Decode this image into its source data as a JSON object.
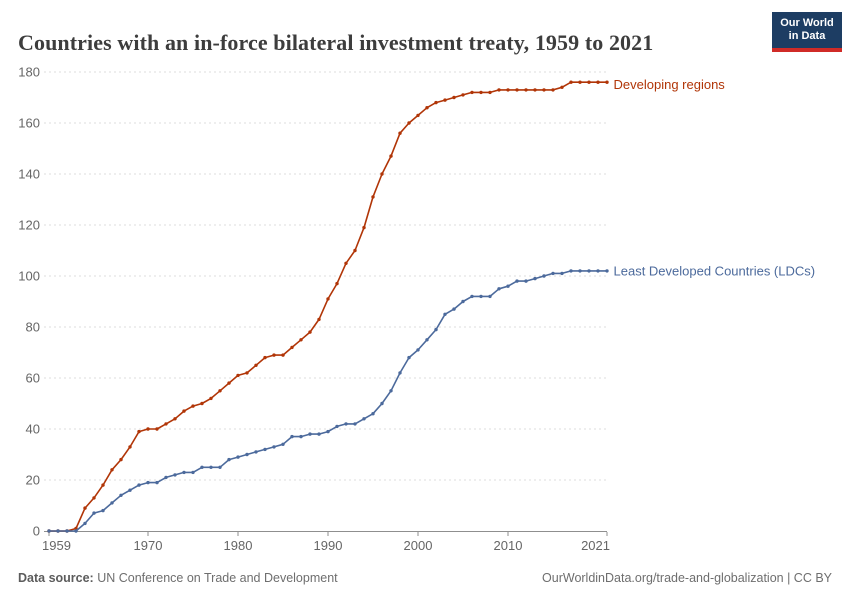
{
  "header": {
    "title": "Countries with an in-force bilateral investment treaty, 1959 to 2021",
    "logo": {
      "line1": "Our World",
      "line2": "in Data"
    }
  },
  "footer": {
    "source_label": "Data source:",
    "source_value": " UN Conference on Trade and Development",
    "credit": "OurWorldinData.org/trade-and-globalization | CC BY"
  },
  "colors": {
    "developing_regions": "#b13507",
    "ldcs": "#4c6a9c",
    "grid": "#dedede",
    "axis": "#8f8f8f",
    "tick_text": "#666666",
    "title_text": "#3d3d3d",
    "logo_bg": "#1d3d63",
    "logo_bar": "#d02b27"
  },
  "chart_data": {
    "type": "line",
    "title": "Countries with an in-force bilateral investment treaty, 1959 to 2021",
    "xlabel": "",
    "ylabel": "",
    "xlim": [
      1959,
      2021
    ],
    "ylim": [
      0,
      180
    ],
    "xticks": [
      1959,
      1970,
      1980,
      1990,
      2000,
      2010,
      2021
    ],
    "yticks": [
      0,
      20,
      40,
      60,
      80,
      100,
      120,
      140,
      160,
      180
    ],
    "grid": "horizontal-dashed",
    "legend": "line-end-labels",
    "markers": "dots-every-year",
    "x": [
      1959,
      1960,
      1961,
      1962,
      1963,
      1964,
      1965,
      1966,
      1967,
      1968,
      1969,
      1970,
      1971,
      1972,
      1973,
      1974,
      1975,
      1976,
      1977,
      1978,
      1979,
      1980,
      1981,
      1982,
      1983,
      1984,
      1985,
      1986,
      1987,
      1988,
      1989,
      1990,
      1991,
      1992,
      1993,
      1994,
      1995,
      1996,
      1997,
      1998,
      1999,
      2000,
      2001,
      2002,
      2003,
      2004,
      2005,
      2006,
      2007,
      2008,
      2009,
      2010,
      2011,
      2012,
      2013,
      2014,
      2015,
      2016,
      2017,
      2018,
      2019,
      2020,
      2021
    ],
    "series": [
      {
        "name": "Developing regions",
        "color": "#b13507",
        "values": [
          0,
          0,
          0,
          1,
          9,
          13,
          18,
          24,
          28,
          33,
          39,
          40,
          40,
          42,
          44,
          47,
          49,
          50,
          52,
          55,
          58,
          61,
          62,
          65,
          68,
          69,
          69,
          72,
          75,
          78,
          83,
          91,
          97,
          105,
          110,
          119,
          131,
          140,
          147,
          156,
          160,
          163,
          166,
          168,
          169,
          170,
          171,
          172,
          172,
          172,
          173,
          173,
          173,
          173,
          173,
          173,
          173,
          174,
          176,
          176,
          176,
          176,
          176
        ]
      },
      {
        "name": "Least Developed Countries (LDCs)",
        "color": "#4c6a9c",
        "values": [
          0,
          0,
          0,
          0,
          3,
          7,
          8,
          11,
          14,
          16,
          18,
          19,
          19,
          21,
          22,
          23,
          23,
          25,
          25,
          25,
          28,
          29,
          30,
          31,
          32,
          33,
          34,
          37,
          37,
          38,
          38,
          39,
          41,
          42,
          42,
          44,
          46,
          50,
          55,
          62,
          68,
          71,
          75,
          79,
          85,
          87,
          90,
          92,
          92,
          92,
          95,
          96,
          98,
          98,
          99,
          100,
          101,
          101,
          102,
          102,
          102,
          102,
          102
        ]
      }
    ]
  }
}
